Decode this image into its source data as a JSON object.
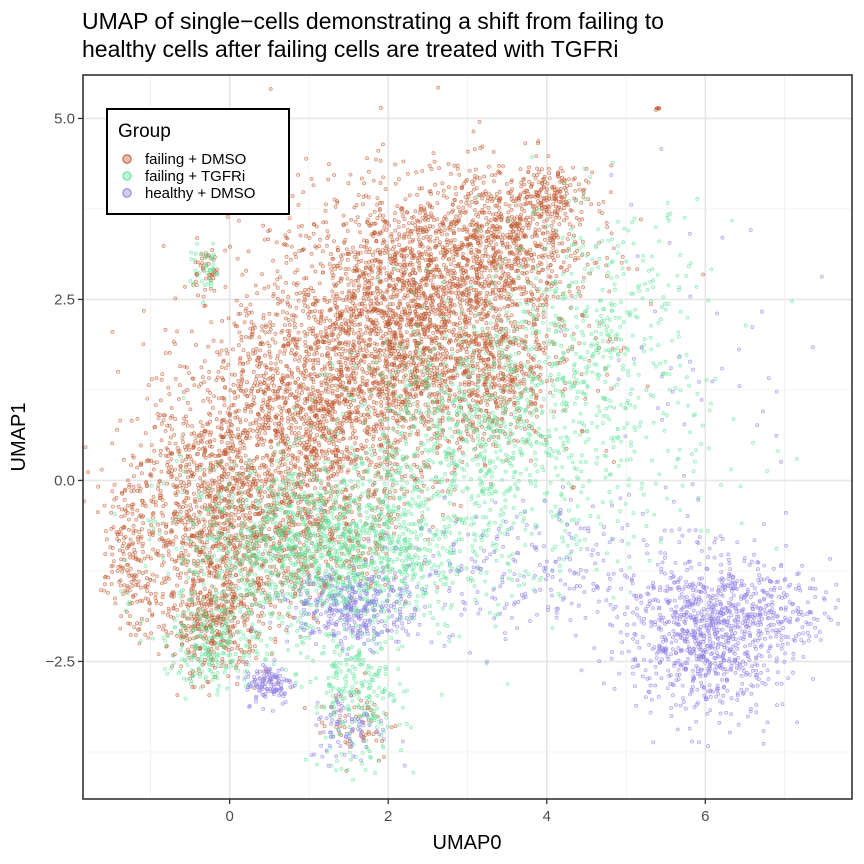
{
  "chart_data": {
    "type": "scatter",
    "title": "UMAP of single−cells demonstrating a shift from failing to",
    "subtitle": "healthy cells after failing cells are treated with TGFRi",
    "xlabel": "UMAP0",
    "ylabel": "UMAP1",
    "xlim": [
      -1.85,
      7.85
    ],
    "ylim": [
      -4.4,
      5.6
    ],
    "x_ticks": [
      0,
      2,
      4,
      6
    ],
    "x_tick_labels": [
      "0",
      "2",
      "4",
      "6"
    ],
    "y_ticks": [
      -2.5,
      0.0,
      2.5,
      5.0
    ],
    "y_tick_labels": [
      "−2.5",
      "0.0",
      "2.5",
      "5.0"
    ],
    "grid": true,
    "legend": {
      "title": "Group",
      "placement": "top-left-inside",
      "entries": [
        "failing + DMSO",
        "failing + TGFRi",
        "healthy + DMSO"
      ]
    },
    "series": [
      {
        "name": "failing + DMSO",
        "color": "#c0582f",
        "clusters": [
          {
            "cx": 2.3,
            "cy": 2.2,
            "sx": 0.9,
            "sy": 0.9,
            "n": 2600
          },
          {
            "cx": 3.4,
            "cy": 3.3,
            "sx": 0.6,
            "sy": 0.5,
            "n": 700
          },
          {
            "cx": 1.0,
            "cy": 0.8,
            "sx": 0.8,
            "sy": 0.8,
            "n": 1500
          },
          {
            "cx": -0.3,
            "cy": -0.5,
            "sx": 0.5,
            "sy": 0.8,
            "n": 900
          },
          {
            "cx": -0.2,
            "cy": -2.0,
            "sx": 0.35,
            "sy": 0.35,
            "n": 350
          },
          {
            "cx": -1.3,
            "cy": -1.0,
            "sx": 0.15,
            "sy": 0.5,
            "n": 160
          },
          {
            "cx": 0.8,
            "cy": -0.8,
            "sx": 0.6,
            "sy": 0.5,
            "n": 500
          },
          {
            "cx": 4.0,
            "cy": 3.9,
            "sx": 0.25,
            "sy": 0.2,
            "n": 150
          },
          {
            "cx": -0.3,
            "cy": 2.9,
            "sx": 0.08,
            "sy": 0.15,
            "n": 40
          },
          {
            "cx": 1.6,
            "cy": -3.3,
            "sx": 0.25,
            "sy": 0.3,
            "n": 60
          },
          {
            "cx": 5.4,
            "cy": 5.15,
            "sx": 0.02,
            "sy": 0.02,
            "n": 6
          },
          {
            "cx": 3.4,
            "cy": 1.3,
            "sx": 0.3,
            "sy": 0.4,
            "n": 200
          }
        ]
      },
      {
        "name": "failing + TGFRi",
        "color": "#5fe39a",
        "clusters": [
          {
            "cx": 1.2,
            "cy": -1.0,
            "sx": 0.9,
            "sy": 0.6,
            "n": 1500
          },
          {
            "cx": 3.2,
            "cy": 0.5,
            "sx": 0.9,
            "sy": 0.8,
            "n": 900
          },
          {
            "cx": 4.6,
            "cy": 2.2,
            "sx": 0.7,
            "sy": 0.8,
            "n": 400
          },
          {
            "cx": 1.6,
            "cy": -3.0,
            "sx": 0.3,
            "sy": 0.5,
            "n": 250
          },
          {
            "cx": -0.2,
            "cy": -2.3,
            "sx": 0.3,
            "sy": 0.3,
            "n": 200
          },
          {
            "cx": -0.3,
            "cy": 2.9,
            "sx": 0.1,
            "sy": 0.15,
            "n": 40
          },
          {
            "cx": 5.5,
            "cy": 0.3,
            "sx": 0.8,
            "sy": 0.8,
            "n": 70
          }
        ]
      },
      {
        "name": "healthy + DMSO",
        "color": "#8c7ae6",
        "clusters": [
          {
            "cx": 6.0,
            "cy": -2.1,
            "sx": 0.5,
            "sy": 0.55,
            "n": 900
          },
          {
            "cx": 6.9,
            "cy": -1.8,
            "sx": 0.35,
            "sy": 0.3,
            "n": 150
          },
          {
            "cx": 1.6,
            "cy": -1.8,
            "sx": 0.4,
            "sy": 0.25,
            "n": 300
          },
          {
            "cx": 3.6,
            "cy": -1.3,
            "sx": 1.0,
            "sy": 0.5,
            "n": 250
          },
          {
            "cx": 0.5,
            "cy": -2.8,
            "sx": 0.15,
            "sy": 0.15,
            "n": 120
          },
          {
            "cx": 1.5,
            "cy": -3.4,
            "sx": 0.25,
            "sy": 0.25,
            "n": 80
          },
          {
            "cx": 5.8,
            "cy": 1.6,
            "sx": 0.7,
            "sy": 1.2,
            "n": 50
          }
        ]
      }
    ]
  }
}
